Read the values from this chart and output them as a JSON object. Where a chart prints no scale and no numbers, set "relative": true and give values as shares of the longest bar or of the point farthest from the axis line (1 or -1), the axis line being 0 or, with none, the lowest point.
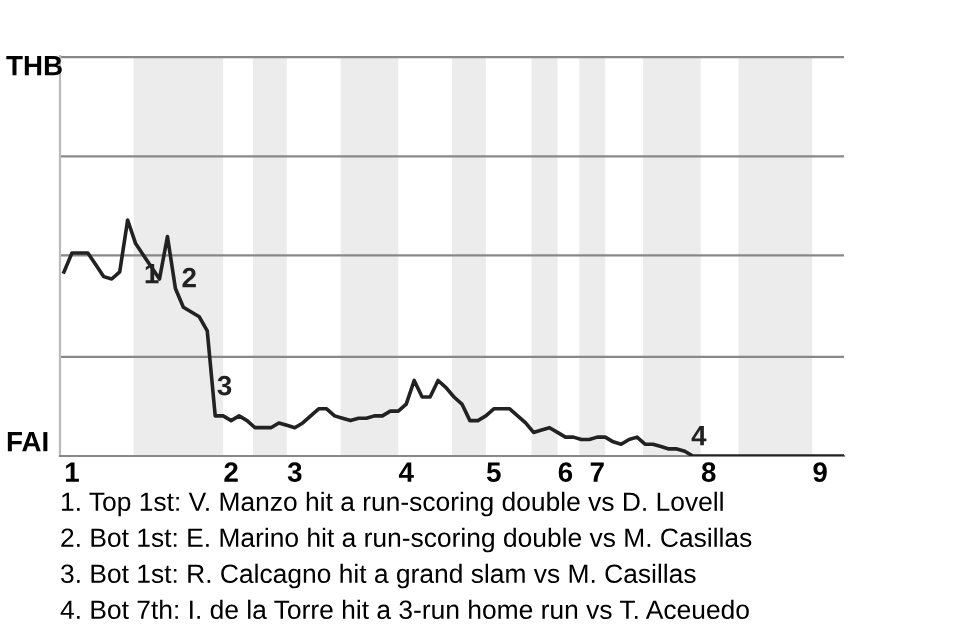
{
  "chart_data": {
    "type": "line",
    "relative": true,
    "categories": [
      null,
      "1",
      null,
      null,
      null,
      null,
      null,
      null,
      null,
      null,
      null,
      null,
      null,
      null,
      null,
      null,
      null,
      null,
      null,
      null,
      null,
      "2",
      null,
      null,
      null,
      null,
      null,
      null,
      null,
      "3",
      null,
      null,
      null,
      null,
      null,
      null,
      null,
      null,
      null,
      null,
      null,
      null,
      null,
      "4",
      null,
      null,
      null,
      null,
      null,
      null,
      null,
      null,
      null,
      null,
      "5",
      null,
      null,
      null,
      null,
      null,
      null,
      null,
      null,
      "6",
      null,
      null,
      null,
      "7",
      null,
      null,
      null,
      null,
      null,
      null,
      null,
      null,
      null,
      null,
      null,
      null,
      null,
      "8",
      null,
      null,
      null,
      null,
      null,
      null,
      null,
      null,
      null,
      null,
      null,
      null,
      null,
      "9",
      null,
      null,
      null
    ],
    "series": [
      {
        "color": "#222222",
        "values": [
          0.78,
          0.86,
          0.86,
          0.86,
          0.81,
          0.76,
          0.75,
          0.78,
          1,
          0.9,
          0.85,
          0.8,
          0.75,
          0.93,
          0.71,
          0.63,
          0.61,
          0.59,
          0.53,
          0.17,
          0.17,
          0.15,
          0.17,
          0.15,
          0.12,
          0.12,
          0.12,
          0.14,
          0.13,
          0.12,
          0.14,
          0.17,
          0.2,
          0.2,
          0.17,
          0.16,
          0.15,
          0.16,
          0.16,
          0.17,
          0.17,
          0.19,
          0.19,
          0.22,
          0.32,
          0.25,
          0.25,
          0.32,
          0.29,
          0.25,
          0.22,
          0.15,
          0.15,
          0.17,
          0.2,
          0.2,
          0.2,
          0.17,
          0.14,
          0.1,
          0.11,
          0.12,
          0.1,
          0.08,
          0.08,
          0.07,
          0.07,
          0.08,
          0.08,
          0.06,
          0.05,
          0.07,
          0.08,
          0.05,
          0.05,
          0.04,
          0.03,
          0.03,
          0.02,
          0,
          0,
          0,
          0,
          0,
          0,
          0,
          0,
          0,
          0,
          0,
          0,
          0,
          0,
          0,
          0,
          0,
          0,
          0,
          0
        ]
      }
    ],
    "ref_lines": [
      {
        "axis": "y",
        "value": 0.42,
        "color": "#888888"
      },
      {
        "axis": "y",
        "value": 0.85,
        "color": "#888888"
      },
      {
        "axis": "y",
        "value": 1.27,
        "color": "#888888"
      },
      {
        "axis": "y",
        "value": 1.69,
        "color": "#888888"
      }
    ],
    "annotations": [
      "1",
      "2",
      "3",
      "4",
      "THB",
      "FAI",
      "1. Top 1st: V. Manzo hit a run-scoring double vs D. Lovell",
      "2. Bot 1st: E. Marino hit a run-scoring double vs M. Casillas",
      "3. Bot 1st: R. Calcagno hit a grand slam vs M. Casillas",
      "4. Bot 7th: I. de la Torre hit a 3-run home run vs T. Aceuedo"
    ]
  }
}
